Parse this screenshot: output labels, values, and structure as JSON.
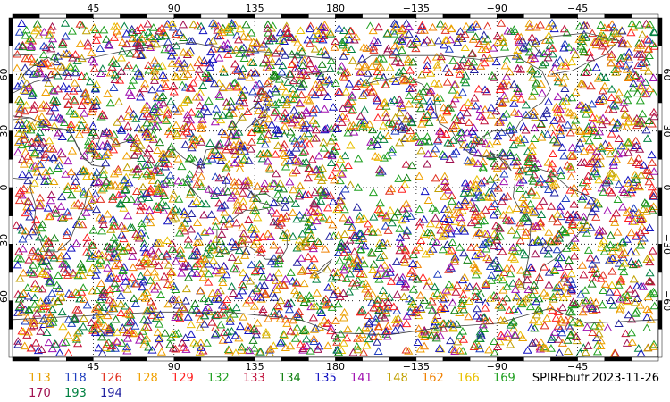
{
  "map": {
    "projection": "equirectangular",
    "center_longitude": 180,
    "lon_ticks": [
      "45",
      "90",
      "135",
      "180",
      "−135",
      "−90",
      "−45"
    ],
    "lat_ticks": [
      "60",
      "30",
      "0",
      "−30",
      "−60"
    ],
    "gridlines": "dotted",
    "coastlines": true,
    "marker": "triangle-outline",
    "observation_density": "dense global coverage over land and ocean"
  },
  "legend": {
    "items": [
      {
        "label": "113",
        "color": "#e8a000"
      },
      {
        "label": "118",
        "color": "#1f3fbf"
      },
      {
        "label": "126",
        "color": "#e03020"
      },
      {
        "label": "128",
        "color": "#f0a000"
      },
      {
        "label": "129",
        "color": "#ff2020"
      },
      {
        "label": "132",
        "color": "#20a020"
      },
      {
        "label": "133",
        "color": "#c0103a"
      },
      {
        "label": "134",
        "color": "#108010"
      },
      {
        "label": "135",
        "color": "#1010c0"
      },
      {
        "label": "141",
        "color": "#a010b0"
      },
      {
        "label": "148",
        "color": "#c0a000"
      },
      {
        "label": "162",
        "color": "#f08000"
      },
      {
        "label": "166",
        "color": "#e8c000"
      },
      {
        "label": "169",
        "color": "#20a020"
      },
      {
        "label": "170",
        "color": "#a01050"
      },
      {
        "label": "193",
        "color": "#008040"
      },
      {
        "label": "194",
        "color": "#2020a0"
      }
    ],
    "source_label": "SPIREbufr.2023-11-26"
  }
}
